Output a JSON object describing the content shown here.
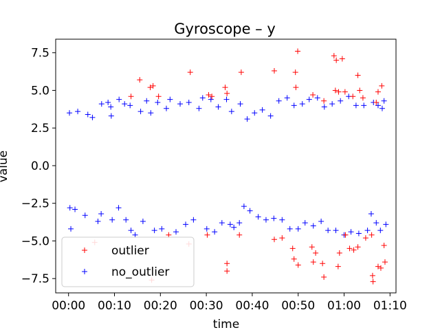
{
  "chart_data": {
    "type": "scatter",
    "title": "Gyroscope – y",
    "xlabel": "time",
    "ylabel": "value",
    "x_unit": "minutes",
    "xlim": [
      -2.8,
      71.3
    ],
    "ylim": [
      -8.45,
      8.4
    ],
    "x_ticks": [
      {
        "value": 0,
        "label": "00:00"
      },
      {
        "value": 10,
        "label": "00:10"
      },
      {
        "value": 20,
        "label": "00:20"
      },
      {
        "value": 30,
        "label": "00:30"
      },
      {
        "value": 40,
        "label": "00:40"
      },
      {
        "value": 50,
        "label": "00:50"
      },
      {
        "value": 60,
        "label": "01:00"
      },
      {
        "value": 70,
        "label": "01:10"
      }
    ],
    "y_ticks": [
      {
        "value": 7.5,
        "label": "7.5"
      },
      {
        "value": 5.0,
        "label": "5.0"
      },
      {
        "value": 2.5,
        "label": "2.5"
      },
      {
        "value": 0.0,
        "label": "0.0"
      },
      {
        "value": -2.5,
        "label": "−2.5"
      },
      {
        "value": -5.0,
        "label": "−5.0"
      },
      {
        "value": -7.5,
        "label": "−7.5"
      }
    ],
    "grid": false,
    "legend_position": "lower-left",
    "marker": "+",
    "series": [
      {
        "name": "outlier",
        "color": "#ff0000",
        "points": [
          [
            15.5,
            5.7
          ],
          [
            13.6,
            4.6
          ],
          [
            17.8,
            5.2
          ],
          [
            18.4,
            5.3
          ],
          [
            19.6,
            4.6
          ],
          [
            26.5,
            6.2
          ],
          [
            30.5,
            4.7
          ],
          [
            31.2,
            4.6
          ],
          [
            34.1,
            5.2
          ],
          [
            34.5,
            4.8
          ],
          [
            37.6,
            6.2
          ],
          [
            44.8,
            6.3
          ],
          [
            49.4,
            6.2
          ],
          [
            49.5,
            5.2
          ],
          [
            49.9,
            7.6
          ],
          [
            53.2,
            4.7
          ],
          [
            55.6,
            4.3
          ],
          [
            57.8,
            7.3
          ],
          [
            58.3,
            7.0
          ],
          [
            59.6,
            7.1
          ],
          [
            58.8,
            4.9
          ],
          [
            58.1,
            5.0
          ],
          [
            63.0,
            6.0
          ],
          [
            63.4,
            5.0
          ],
          [
            64.1,
            4.5
          ],
          [
            67.4,
            4.9
          ],
          [
            67.0,
            4.2
          ],
          [
            68.2,
            5.3
          ],
          [
            60.2,
            4.9
          ],
          [
            61.9,
            4.6
          ],
          [
            5.7,
            -5.1
          ],
          [
            18.1,
            -7.6
          ],
          [
            21.8,
            -4.6
          ],
          [
            26.2,
            -5.2
          ],
          [
            30.2,
            -4.6
          ],
          [
            34.5,
            -6.5
          ],
          [
            34.5,
            -7.0
          ],
          [
            37.2,
            -4.6
          ],
          [
            44.8,
            -4.9
          ],
          [
            46.5,
            -4.8
          ],
          [
            48.8,
            -5.5
          ],
          [
            49.1,
            -6.2
          ],
          [
            50.0,
            -6.6
          ],
          [
            53.0,
            -5.4
          ],
          [
            53.8,
            -5.8
          ],
          [
            53.3,
            -6.4
          ],
          [
            55.3,
            -6.5
          ],
          [
            55.6,
            -7.4
          ],
          [
            58.7,
            -6.7
          ],
          [
            59.0,
            -5.8
          ],
          [
            61.2,
            -5.5
          ],
          [
            62.1,
            -5.6
          ],
          [
            63.0,
            -5.4
          ],
          [
            64.7,
            -4.8
          ],
          [
            66.0,
            -4.6
          ],
          [
            66.2,
            -7.3
          ],
          [
            66.3,
            -7.7
          ],
          [
            67.4,
            -6.7
          ],
          [
            68.0,
            -6.8
          ],
          [
            68.7,
            -5.3
          ],
          [
            68.9,
            -6.4
          ],
          [
            60.3,
            -4.6
          ]
        ]
      },
      {
        "name": "no_outlier",
        "color": "#0000ff",
        "points": [
          [
            0.2,
            3.5
          ],
          [
            0.5,
            -4.2
          ],
          [
            2.0,
            3.6
          ],
          [
            0.3,
            -2.8
          ],
          [
            1.4,
            -2.9
          ],
          [
            4.2,
            3.4
          ],
          [
            5.2,
            3.2
          ],
          [
            6.4,
            -3.7
          ],
          [
            7.1,
            -3.2
          ],
          [
            7.2,
            4.1
          ],
          [
            8.6,
            4.2
          ],
          [
            9.2,
            3.9
          ],
          [
            9.3,
            3.3
          ],
          [
            9.5,
            -3.6
          ],
          [
            10.9,
            -2.8
          ],
          [
            11.0,
            4.4
          ],
          [
            12.5,
            -3.6
          ],
          [
            13.4,
            4.0
          ],
          [
            13.6,
            -4.3
          ],
          [
            14.5,
            -4.6
          ],
          [
            15.7,
            3.6
          ],
          [
            16.2,
            -3.7
          ],
          [
            17.0,
            4.3
          ],
          [
            17.9,
            3.5
          ],
          [
            18.7,
            -4.3
          ],
          [
            19.4,
            4.2
          ],
          [
            20.3,
            -4.2
          ],
          [
            21.3,
            3.8
          ],
          [
            22.1,
            4.4
          ],
          [
            23.4,
            -4.4
          ],
          [
            24.3,
            4.1
          ],
          [
            25.5,
            -3.9
          ],
          [
            26.2,
            4.2
          ],
          [
            27.2,
            -3.6
          ],
          [
            28.4,
            3.8
          ],
          [
            29.2,
            4.5
          ],
          [
            30.1,
            -4.2
          ],
          [
            31.0,
            4.4
          ],
          [
            31.8,
            -4.4
          ],
          [
            32.6,
            3.9
          ],
          [
            33.4,
            -3.8
          ],
          [
            34.4,
            4.4
          ],
          [
            35.2,
            -3.9
          ],
          [
            35.5,
            3.6
          ],
          [
            36.0,
            -4.1
          ],
          [
            37.2,
            -3.8
          ],
          [
            37.4,
            4.1
          ],
          [
            38.2,
            -2.7
          ],
          [
            38.9,
            3.1
          ],
          [
            39.5,
            -3.0
          ],
          [
            40.5,
            3.5
          ],
          [
            41.3,
            -3.4
          ],
          [
            42.2,
            3.7
          ],
          [
            43.0,
            -3.6
          ],
          [
            44.0,
            3.3
          ],
          [
            44.7,
            -3.5
          ],
          [
            45.8,
            4.3
          ],
          [
            46.5,
            -3.6
          ],
          [
            47.6,
            4.5
          ],
          [
            48.2,
            -4.2
          ],
          [
            49.1,
            4.0
          ],
          [
            50.0,
            -4.2
          ],
          [
            50.9,
            4.1
          ],
          [
            51.5,
            -3.8
          ],
          [
            52.4,
            4.4
          ],
          [
            53.3,
            -4.0
          ],
          [
            54.2,
            4.5
          ],
          [
            55.0,
            -3.7
          ],
          [
            55.7,
            3.9
          ],
          [
            56.5,
            -4.3
          ],
          [
            57.4,
            4.1
          ],
          [
            58.2,
            -4.3
          ],
          [
            59.2,
            4.3
          ],
          [
            60.0,
            -4.6
          ],
          [
            61.0,
            4.6
          ],
          [
            61.5,
            -4.4
          ],
          [
            62.6,
            4.0
          ],
          [
            63.2,
            -4.5
          ],
          [
            64.3,
            4.0
          ],
          [
            65.1,
            -4.3
          ],
          [
            66.4,
            4.2
          ],
          [
            67.0,
            -3.8
          ],
          [
            67.4,
            4.0
          ],
          [
            67.9,
            -4.3
          ],
          [
            68.7,
            4.3
          ],
          [
            69.1,
            -3.9
          ],
          [
            68.3,
            3.8
          ],
          [
            65.9,
            -3.2
          ],
          [
            12.2,
            4.1
          ],
          [
            3.6,
            -3.3
          ]
        ]
      }
    ]
  }
}
